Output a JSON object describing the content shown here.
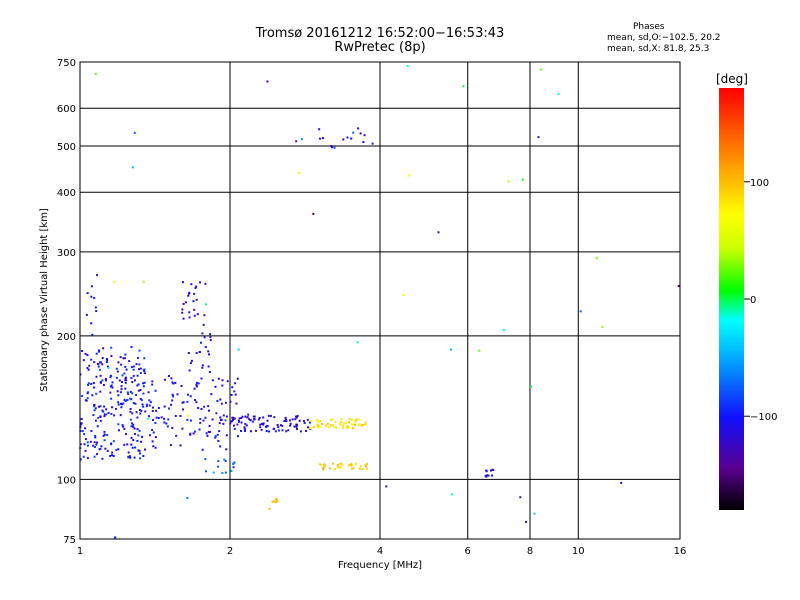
{
  "chart_data": {
    "type": "scatter",
    "title": "Tromsø 20161212 16:52:00−16:53:43",
    "subtitle": "RwPretec (8p)",
    "xlabel": "Frequency [MHz]",
    "ylabel": "Stationary phase Virtual Height [km]",
    "x_scale": "log",
    "y_scale": "log",
    "xlim": [
      1,
      16
    ],
    "ylim": [
      75,
      750
    ],
    "x_ticks": [
      1,
      2,
      4,
      6,
      8,
      10,
      16
    ],
    "x_tick_labels": [
      "1",
      "2",
      "4",
      "6",
      "8",
      "10",
      "16"
    ],
    "y_ticks": [
      75,
      100,
      200,
      300,
      400,
      500,
      600,
      750
    ],
    "y_tick_labels": [
      "75",
      "100",
      "200",
      "300",
      "400",
      "500",
      "600",
      "750"
    ],
    "grid": true,
    "colorbar": {
      "label": "[deg]",
      "range": [
        -180,
        180
      ],
      "ticks": [
        -100,
        0,
        100
      ],
      "tick_labels": [
        "−100",
        "0",
        "100"
      ]
    },
    "phases_legend": {
      "heading": "Phases",
      "line1": "mean, sd,O:−102.5, 20.2",
      "line2": "mean, sd,X:  81.8, 25.3"
    },
    "clusters": [
      {
        "x": [
          1.0,
          1.35
        ],
        "y": [
          110,
          190
        ],
        "phase": -105,
        "n": 260,
        "spread": 25
      },
      {
        "x": [
          1.35,
          2.1
        ],
        "y": [
          115,
          165
        ],
        "phase": -110,
        "n": 130,
        "spread": 20
      },
      {
        "x": [
          2.0,
          2.9
        ],
        "y": [
          126,
          136
        ],
        "phase": -115,
        "n": 90,
        "spread": 22
      },
      {
        "x": [
          2.9,
          3.75
        ],
        "y": [
          128,
          134
        ],
        "phase": 85,
        "n": 55,
        "spread": 18
      },
      {
        "x": [
          3.0,
          3.8
        ],
        "y": [
          105,
          108
        ],
        "phase": 95,
        "n": 30,
        "spread": 12
      },
      {
        "x": [
          1.75,
          2.05
        ],
        "y": [
          103,
          112
        ],
        "phase": -70,
        "n": 14,
        "spread": 25
      },
      {
        "x": [
          1.6,
          1.8
        ],
        "y": [
          210,
          260
        ],
        "phase": -120,
        "n": 24,
        "spread": 15
      },
      {
        "x": [
          1.65,
          1.85
        ],
        "y": [
          165,
          205
        ],
        "phase": -110,
        "n": 20,
        "spread": 15
      },
      {
        "x": [
          2.6,
          3.9
        ],
        "y": [
          495,
          545
        ],
        "phase": -100,
        "n": 16,
        "spread": 40
      },
      {
        "x": [
          6.5,
          6.9
        ],
        "y": [
          101,
          105
        ],
        "phase": -110,
        "n": 10,
        "spread": 10
      },
      {
        "x": [
          2.4,
          2.5
        ],
        "y": [
          86,
          92
        ],
        "phase": 100,
        "n": 8,
        "spread": 8
      },
      {
        "x": [
          1.0,
          1.1
        ],
        "y": [
          200,
          280
        ],
        "phase": -105,
        "n": 10,
        "spread": 20
      },
      {
        "x": [
          1.0,
          16.0
        ],
        "y": [
          75,
          750
        ],
        "phase": -40,
        "n": 45,
        "spread": 110
      }
    ]
  }
}
